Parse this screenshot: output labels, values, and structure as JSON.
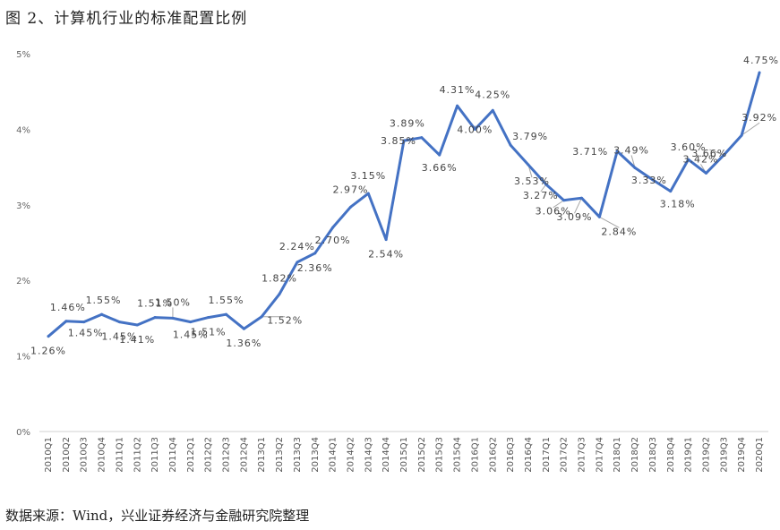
{
  "figure": {
    "title": "图 2、计算机行业的标准配置比例",
    "source": "数据来源：Wind，兴业证券经济与金融研究院整理"
  },
  "colors": {
    "line": "#4472C4",
    "leader": "#a6a6a6",
    "text": "#444444"
  },
  "chart_data": {
    "type": "line",
    "title": "",
    "xlabel": "",
    "ylabel": "",
    "ylim": [
      0,
      5
    ],
    "yticks": [
      "0%",
      "1%",
      "2%",
      "3%",
      "4%",
      "5%"
    ],
    "grid": false,
    "legend": "none",
    "categories": [
      "2010Q1",
      "2010Q2",
      "2010Q3",
      "2010Q4",
      "2011Q1",
      "2011Q2",
      "2011Q3",
      "2011Q4",
      "2012Q1",
      "2012Q2",
      "2012Q3",
      "2012Q4",
      "2013Q1",
      "2013Q2",
      "2013Q3",
      "2013Q4",
      "2014Q1",
      "2014Q2",
      "2014Q3",
      "2014Q4",
      "2015Q1",
      "2015Q2",
      "2015Q3",
      "2015Q4",
      "2016Q1",
      "2016Q2",
      "2016Q3",
      "2016Q4",
      "2017Q1",
      "2017Q2",
      "2017Q3",
      "2017Q4",
      "2018Q1",
      "2018Q2",
      "2018Q3",
      "2018Q4",
      "2019Q1",
      "2019Q2",
      "2019Q3",
      "2019Q4",
      "2020Q1"
    ],
    "series": [
      {
        "values": [
          1.26,
          1.46,
          1.45,
          1.55,
          1.45,
          1.41,
          1.51,
          1.5,
          1.45,
          1.51,
          1.55,
          1.36,
          1.52,
          1.82,
          2.24,
          2.36,
          2.7,
          2.97,
          3.15,
          2.54,
          3.85,
          3.89,
          3.66,
          4.31,
          4.0,
          4.25,
          3.79,
          3.53,
          3.27,
          3.06,
          3.09,
          2.84,
          3.71,
          3.49,
          3.33,
          3.18,
          3.6,
          3.42,
          3.66,
          3.92,
          4.75
        ]
      }
    ],
    "data_labels": [
      "1.26%",
      "1.46%",
      "1.45%",
      "1.55%",
      "1.45%",
      "1.41%",
      "1.51%",
      "1.50%",
      "1.45%",
      "1.51%",
      "1.55%",
      "1.36%",
      "1.52%",
      "1.82%",
      "2.24%",
      "2.36%",
      "2.70%",
      "2.97%",
      "3.15%",
      "2.54%",
      "3.85%",
      "3.89%",
      "3.66%",
      "4.31%",
      "4.00%",
      "4.25%",
      "3.79%",
      "3.53%",
      "3.27%",
      "3.06%",
      "3.09%",
      "2.84%",
      "3.71%",
      "3.49%",
      "3.33%",
      "3.18%",
      "3.60%",
      "3.42%",
      "3.66%",
      "3.92%",
      "4.75%"
    ]
  }
}
